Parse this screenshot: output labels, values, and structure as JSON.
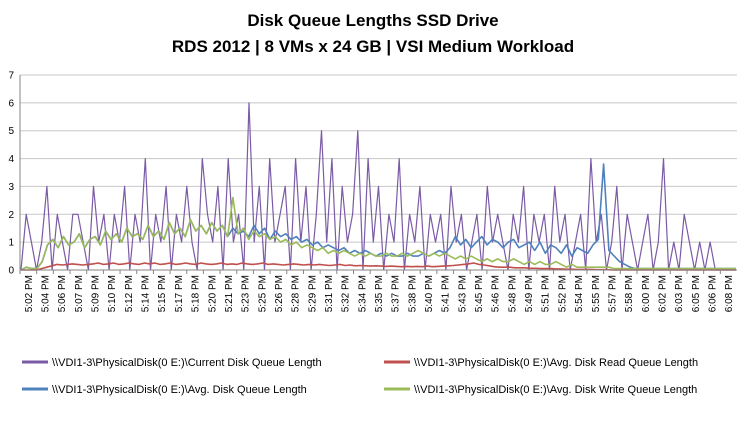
{
  "chart_data": {
    "type": "line",
    "title": "Disk Queue Lengths SSD Drive",
    "subtitle": "RDS 2012 | 8 VMs x 24 GB | VSI Medium Workload",
    "xlabel": "",
    "ylabel": "",
    "ylim": [
      0,
      7
    ],
    "yticks": [
      0,
      1,
      2,
      3,
      4,
      5,
      6,
      7
    ],
    "grid": true,
    "legend_position": "bottom",
    "x_labels": [
      "5:02 PM",
      "5:04 PM",
      "5:06 PM",
      "5:07 PM",
      "5:09 PM",
      "5:10 PM",
      "5:12 PM",
      "5:14 PM",
      "5:15 PM",
      "5:17 PM",
      "5:18 PM",
      "5:20 PM",
      "5:21 PM",
      "5:23 PM",
      "5:25 PM",
      "5:26 PM",
      "5:28 PM",
      "5:29 PM",
      "5:31 PM",
      "5:32 PM",
      "5:34 PM",
      "5:35 PM",
      "5:37 PM",
      "5:38 PM",
      "5:40 PM",
      "5:41 PM",
      "5:43 PM",
      "5:45 PM",
      "5:46 PM",
      "5:48 PM",
      "5:49 PM",
      "5:51 PM",
      "5:52 PM",
      "5:54 PM",
      "5:55 PM",
      "5:57 PM",
      "5:58 PM",
      "6:00 PM",
      "6:02 PM",
      "6:03 PM",
      "6:05 PM",
      "6:06 PM",
      "6:08 PM"
    ],
    "series": [
      {
        "name": "\\\\VDI1-3\\PhysicalDisk(0 E:)\\Current Disk Queue Length",
        "color": "#7b5aa6",
        "values": [
          0,
          2,
          1,
          0,
          1,
          3,
          0,
          2,
          1,
          0,
          2,
          2,
          1,
          0,
          3,
          1,
          2,
          0,
          2,
          1,
          3,
          0,
          2,
          1,
          4,
          0,
          2,
          1,
          3,
          0,
          2,
          1,
          3,
          1,
          0,
          4,
          2,
          1,
          3,
          0,
          4,
          1,
          2,
          0,
          6,
          1,
          3,
          0,
          4,
          1,
          2,
          3,
          0,
          4,
          1,
          3,
          0,
          2,
          5,
          1,
          4,
          0,
          3,
          1,
          2,
          5,
          0,
          4,
          1,
          3,
          0,
          2,
          1,
          4,
          0,
          2,
          1,
          3,
          0,
          2,
          1,
          2,
          0,
          3,
          1,
          2,
          0,
          1,
          2,
          0,
          3,
          1,
          2,
          1,
          0,
          2,
          1,
          3,
          0,
          2,
          1,
          2,
          0,
          3,
          1,
          2,
          0,
          1,
          2,
          0,
          4,
          1,
          2,
          0,
          1,
          3,
          0,
          2,
          1,
          0,
          1,
          2,
          0,
          1,
          4,
          0,
          1,
          0,
          2,
          1,
          0,
          1,
          0,
          1,
          0,
          0,
          0,
          0,
          0
        ]
      },
      {
        "name": "\\\\VDI1-3\\PhysicalDisk(0 E:)\\Avg. Disk Read Queue Length",
        "color": "#c0504d",
        "values": [
          0,
          0,
          0,
          0,
          0.05,
          0.1,
          0.15,
          0.2,
          0.18,
          0.2,
          0.22,
          0.2,
          0.18,
          0.2,
          0.22,
          0.25,
          0.2,
          0.22,
          0.25,
          0.2,
          0.22,
          0.25,
          0.22,
          0.2,
          0.25,
          0.22,
          0.25,
          0.2,
          0.22,
          0.25,
          0.2,
          0.22,
          0.25,
          0.22,
          0.2,
          0.25,
          0.22,
          0.2,
          0.22,
          0.25,
          0.2,
          0.22,
          0.2,
          0.25,
          0.22,
          0.2,
          0.22,
          0.25,
          0.2,
          0.22,
          0.2,
          0.18,
          0.2,
          0.22,
          0.2,
          0.18,
          0.2,
          0.18,
          0.2,
          0.18,
          0.16,
          0.18,
          0.2,
          0.16,
          0.18,
          0.15,
          0.16,
          0.15,
          0.14,
          0.15,
          0.14,
          0.13,
          0.14,
          0.13,
          0.12,
          0.13,
          0.12,
          0.13,
          0.12,
          0.14,
          0.12,
          0.13,
          0.14,
          0.15,
          0.16,
          0.18,
          0.2,
          0.22,
          0.25,
          0.2,
          0.18,
          0.15,
          0.12,
          0.1,
          0.1,
          0.1,
          0.08,
          0.08,
          0.08,
          0.06,
          0.06,
          0.05,
          0.05,
          0.05,
          0.04,
          0.04,
          0.03,
          0.03,
          0.02,
          0.02,
          0.02,
          0.02,
          0.01,
          0.01,
          0.01,
          0,
          0,
          0,
          0,
          0,
          0,
          0,
          0,
          0,
          0,
          0,
          0,
          0,
          0,
          0,
          0,
          0,
          0,
          0,
          0,
          0,
          0,
          0,
          0,
          0
        ]
      },
      {
        "name": "\\\\VDI1-3\\PhysicalDisk(0 E:)\\Avg. Disk Queue Length",
        "color": "#4f81bd",
        "values": [
          0,
          0.1,
          0.05,
          0.05,
          0.3,
          0.9,
          1.1,
          0.8,
          1.2,
          0.9,
          1.0,
          1.3,
          0.8,
          1.1,
          1.2,
          0.9,
          1.4,
          1.1,
          1.3,
          1.0,
          1.5,
          1.2,
          1.3,
          1.1,
          1.6,
          1.2,
          1.4,
          1.1,
          1.7,
          1.3,
          1.5,
          1.2,
          1.8,
          1.4,
          1.6,
          1.3,
          1.7,
          1.4,
          1.6,
          1.2,
          1.5,
          1.3,
          1.4,
          1.2,
          1.6,
          1.3,
          1.5,
          1.1,
          1.4,
          1.2,
          1.3,
          1.1,
          1.2,
          1.0,
          1.1,
          0.9,
          1.0,
          0.8,
          0.9,
          0.8,
          0.7,
          0.8,
          0.6,
          0.7,
          0.6,
          0.7,
          0.6,
          0.5,
          0.6,
          0.5,
          0.6,
          0.5,
          0.5,
          0.6,
          0.5,
          0.5,
          0.6,
          0.5,
          0.6,
          0.7,
          0.6,
          0.8,
          1.2,
          0.9,
          1.1,
          0.8,
          1.0,
          1.2,
          0.9,
          1.1,
          1.0,
          0.8,
          1.0,
          1.1,
          0.8,
          0.9,
          1.0,
          0.7,
          1.0,
          0.6,
          0.9,
          0.8,
          0.6,
          0.9,
          0.5,
          0.8,
          0.7,
          0.6,
          0.9,
          1.1,
          3.8,
          0.7,
          0.5,
          0.3,
          0.2,
          0.1,
          0.05,
          0.05,
          0.05,
          0.05,
          0.05,
          0.05,
          0.05,
          0.05,
          0.05,
          0.05,
          0.05,
          0.05,
          0.05,
          0.05,
          0.05,
          0.05,
          0.05,
          0.05,
          0.05,
          0.05
        ]
      },
      {
        "name": "\\\\VDI1-3\\PhysicalDisk(0 E:)\\Avg. Disk Write Queue Length",
        "color": "#9bbb59",
        "values": [
          0,
          0.1,
          0.05,
          0.05,
          0.3,
          0.9,
          1.1,
          0.8,
          1.2,
          0.9,
          1.0,
          1.3,
          0.8,
          1.1,
          1.2,
          0.9,
          1.4,
          1.1,
          1.3,
          1.0,
          1.5,
          1.2,
          1.3,
          1.1,
          1.6,
          1.2,
          1.4,
          1.1,
          1.7,
          1.3,
          1.5,
          1.2,
          1.8,
          1.4,
          1.6,
          1.3,
          1.7,
          1.4,
          1.6,
          1.2,
          2.6,
          1.3,
          1.5,
          1.1,
          1.4,
          1.2,
          1.3,
          1.1,
          1.2,
          1.0,
          1.1,
          0.9,
          1.0,
          0.8,
          0.9,
          0.8,
          0.7,
          0.8,
          0.6,
          0.7,
          0.6,
          0.7,
          0.6,
          0.5,
          0.6,
          0.5,
          0.6,
          0.5,
          0.5,
          0.6,
          0.5,
          0.5,
          0.6,
          0.5,
          0.6,
          0.7,
          0.6,
          0.5,
          0.6,
          0.5,
          0.6,
          0.5,
          0.4,
          0.5,
          0.4,
          0.5,
          0.4,
          0.3,
          0.4,
          0.3,
          0.4,
          0.3,
          0.3,
          0.4,
          0.3,
          0.2,
          0.3,
          0.2,
          0.3,
          0.2,
          0.2,
          0.3,
          0.2,
          0.1,
          0.2,
          0.1,
          0.1,
          0.1,
          0.1,
          0.1,
          0.1,
          0.1,
          0.05,
          0.05,
          0.05,
          0.05,
          0.05,
          0.05,
          0.05,
          0.05,
          0.05,
          0.05,
          0.05,
          0.05,
          0.05,
          0.05,
          0.05,
          0.05,
          0.05,
          0.05,
          0.05,
          0.05,
          0.05,
          0.05,
          0.05,
          0.05
        ]
      }
    ]
  }
}
